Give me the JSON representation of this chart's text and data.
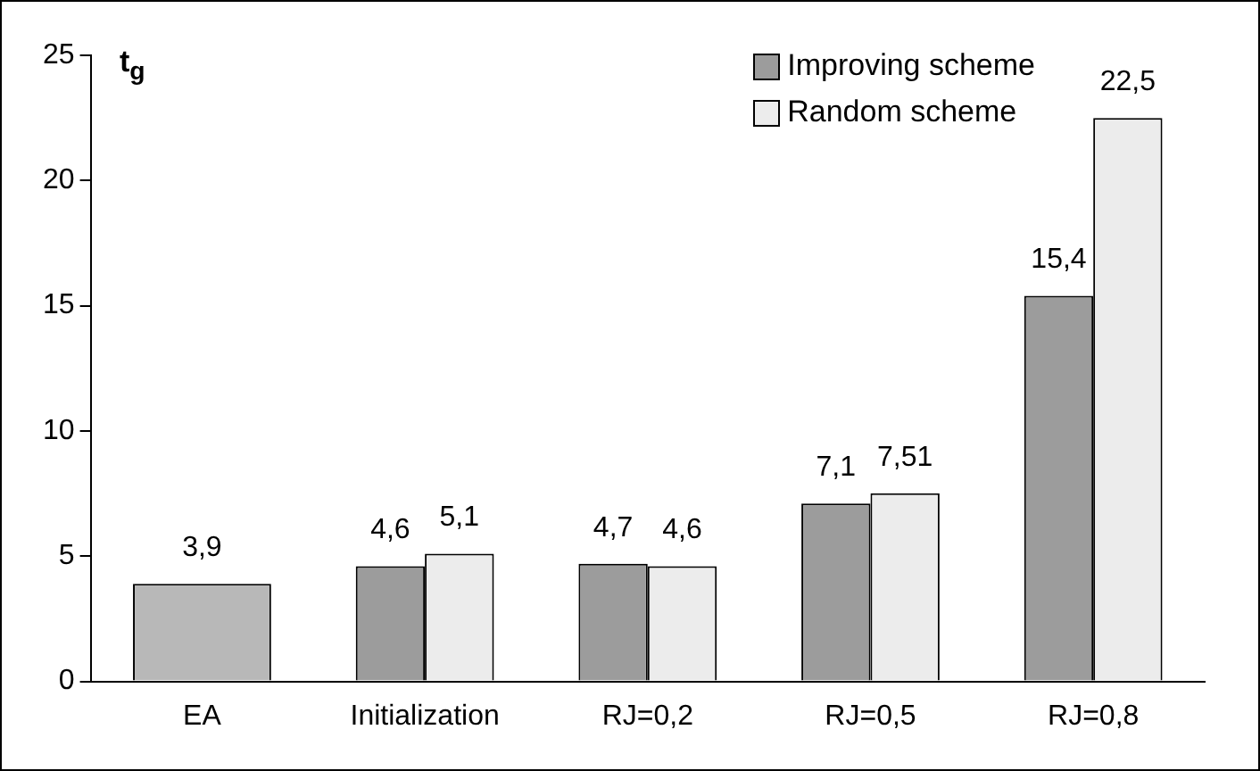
{
  "chart_data": {
    "type": "bar",
    "ylabel": "t$_{g}$",
    "categories": [
      "EA",
      "Initialization",
      "RJ=0,2",
      "RJ=0,5",
      "RJ=0,8"
    ],
    "series": [
      {
        "color": "#b8b8b8",
        "values": [
          3.9,
          null,
          null,
          null,
          null
        ],
        "value_labels": [
          "3,9",
          null,
          null,
          null,
          null
        ]
      },
      {
        "name": "Improving scheme",
        "color": "#9c9c9c",
        "values": [
          null,
          4.6,
          4.7,
          7.1,
          15.4
        ],
        "value_labels": [
          null,
          "4,6",
          "4,7",
          "7,1",
          "15,4"
        ]
      },
      {
        "name": "Random scheme",
        "color": "#ececec",
        "values": [
          null,
          5.1,
          4.6,
          7.51,
          22.5
        ],
        "value_labels": [
          null,
          "5,1",
          "4,6",
          "7,51",
          "22,5"
        ]
      }
    ],
    "ylim": [
      0,
      25
    ],
    "yticks": [
      0,
      5,
      10,
      15,
      20,
      25
    ],
    "grid": false,
    "legend": "top right"
  }
}
